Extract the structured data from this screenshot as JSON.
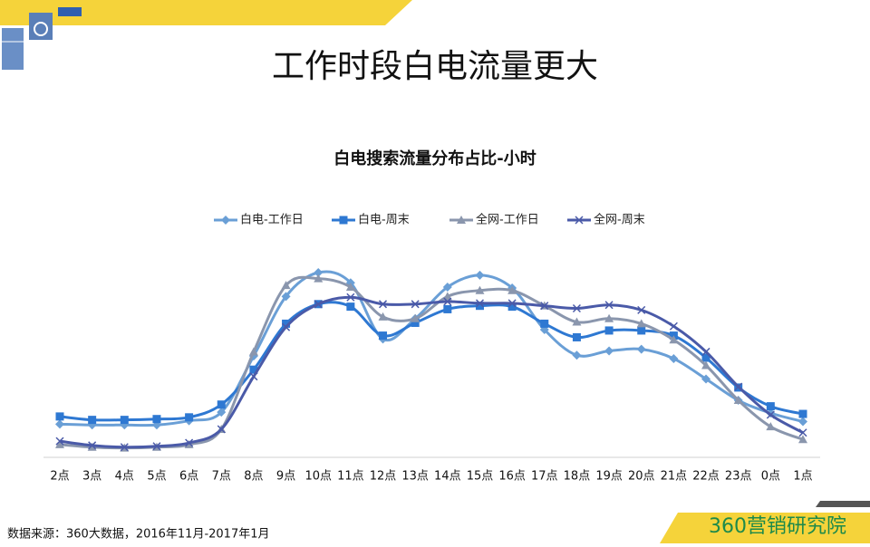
{
  "header": {
    "title": "工作时段白电流量更大"
  },
  "chart_data": {
    "type": "line",
    "title": "白电搜索流量分布占比-小时",
    "categories": [
      "2点",
      "3点",
      "4点",
      "5点",
      "6点",
      "7点",
      "8点",
      "9点",
      "10点",
      "11点",
      "12点",
      "13点",
      "14点",
      "15点",
      "16点",
      "17点",
      "18点",
      "19点",
      "20点",
      "21点",
      "22点",
      "23点",
      "0点",
      "1点"
    ],
    "ylim": [
      0,
      5
    ],
    "smooth": true,
    "series": [
      {
        "name": "白电-工作日",
        "color": "#6a9fd6",
        "marker": "diamond",
        "values": [
          0.78,
          0.76,
          0.76,
          0.76,
          0.86,
          1.06,
          2.38,
          3.78,
          4.34,
          4.1,
          2.78,
          3.26,
          4.0,
          4.28,
          3.98,
          3.0,
          2.4,
          2.5,
          2.54,
          2.32,
          1.84,
          1.34,
          1.04,
          0.84
        ]
      },
      {
        "name": "白电-周末",
        "color": "#2e78d2",
        "marker": "square",
        "values": [
          0.96,
          0.88,
          0.88,
          0.9,
          0.94,
          1.24,
          2.06,
          3.14,
          3.6,
          3.54,
          2.86,
          3.16,
          3.48,
          3.56,
          3.54,
          3.14,
          2.82,
          2.98,
          2.98,
          2.86,
          2.34,
          1.64,
          1.2,
          1.02
        ]
      },
      {
        "name": "全网-工作日",
        "color": "#8a96ad",
        "marker": "triangle",
        "values": [
          0.3,
          0.24,
          0.22,
          0.24,
          0.3,
          0.66,
          2.48,
          4.04,
          4.2,
          4.0,
          3.3,
          3.26,
          3.78,
          3.92,
          3.92,
          3.56,
          3.18,
          3.26,
          3.14,
          2.76,
          2.16,
          1.34,
          0.72,
          0.42
        ]
      },
      {
        "name": "全网-周末",
        "color": "#4a5aa8",
        "marker": "x",
        "values": [
          0.38,
          0.28,
          0.24,
          0.26,
          0.34,
          0.66,
          1.9,
          3.06,
          3.6,
          3.76,
          3.6,
          3.6,
          3.66,
          3.62,
          3.62,
          3.56,
          3.5,
          3.58,
          3.46,
          3.08,
          2.48,
          1.66,
          1.0,
          0.58
        ]
      }
    ]
  },
  "footer": {
    "source": "数据来源：360大数据，2016年11月-2017年1月",
    "logo": "360营销研究院"
  }
}
